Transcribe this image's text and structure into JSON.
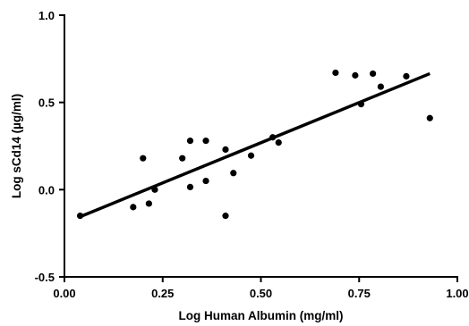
{
  "chart_data": {
    "type": "scatter",
    "title": "",
    "xlabel": "Log Human Albumin (mg/ml)",
    "ylabel": "Log sCd14 (µg/ml)",
    "xlim": [
      0.0,
      1.0
    ],
    "ylim": [
      -0.5,
      1.0
    ],
    "grid": false,
    "x_ticks": [
      "0.00",
      "0.25",
      "0.50",
      "0.75",
      "1.00"
    ],
    "y_ticks": [
      "-0.5",
      "0.0",
      "0.5",
      "1.0"
    ],
    "series": [
      {
        "points": [
          {
            "x": 0.04,
            "y": -0.15
          },
          {
            "x": 0.175,
            "y": -0.1
          },
          {
            "x": 0.2,
            "y": 0.18
          },
          {
            "x": 0.215,
            "y": -0.08
          },
          {
            "x": 0.23,
            "y": 0.0
          },
          {
            "x": 0.3,
            "y": 0.18
          },
          {
            "x": 0.32,
            "y": 0.28
          },
          {
            "x": 0.32,
            "y": 0.015
          },
          {
            "x": 0.36,
            "y": 0.28
          },
          {
            "x": 0.36,
            "y": 0.05
          },
          {
            "x": 0.41,
            "y": 0.23
          },
          {
            "x": 0.41,
            "y": -0.15
          },
          {
            "x": 0.43,
            "y": 0.095
          },
          {
            "x": 0.475,
            "y": 0.195
          },
          {
            "x": 0.53,
            "y": 0.3
          },
          {
            "x": 0.545,
            "y": 0.27
          },
          {
            "x": 0.69,
            "y": 0.67
          },
          {
            "x": 0.74,
            "y": 0.655
          },
          {
            "x": 0.755,
            "y": 0.49
          },
          {
            "x": 0.785,
            "y": 0.665
          },
          {
            "x": 0.805,
            "y": 0.59
          },
          {
            "x": 0.87,
            "y": 0.65
          },
          {
            "x": 0.93,
            "y": 0.41
          }
        ]
      }
    ],
    "fit_line": {
      "x": [
        0.04,
        0.93
      ],
      "y": [
        -0.155,
        0.665
      ]
    }
  }
}
